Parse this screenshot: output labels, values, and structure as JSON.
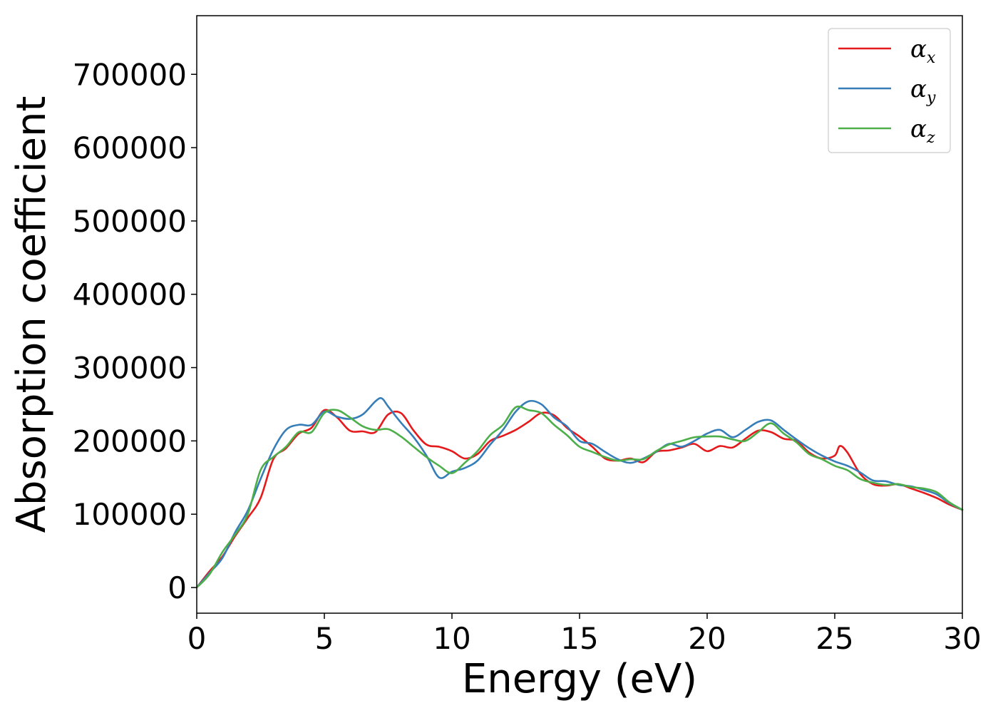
{
  "chart_data": {
    "type": "line",
    "title": "",
    "xlabel": "Energy (eV)",
    "ylabel": "Absorption coefficient",
    "xlim": [
      0,
      30
    ],
    "ylim": [
      -35000,
      780000
    ],
    "xticks": [
      0,
      5,
      10,
      15,
      20,
      25,
      30
    ],
    "yticks": [
      0,
      100000,
      200000,
      300000,
      400000,
      500000,
      600000,
      700000
    ],
    "xtick_labels": [
      "0",
      "5",
      "10",
      "15",
      "20",
      "25",
      "30"
    ],
    "ytick_labels": [
      "0",
      "100000",
      "200000",
      "300000",
      "400000",
      "500000",
      "600000",
      "700000"
    ],
    "grid": false,
    "legend_position": "top-right",
    "series": [
      {
        "name_symbol": "α",
        "name_subscript": "x",
        "color": "#e41a1c",
        "x": [
          0,
          0.5,
          1,
          1.5,
          2,
          2.5,
          3,
          3.5,
          4,
          4.5,
          5,
          5.5,
          6,
          6.5,
          7,
          7.5,
          8,
          8.5,
          9,
          9.5,
          10,
          10.5,
          11,
          11.5,
          12,
          12.5,
          13,
          13.5,
          14,
          14.5,
          15,
          15.5,
          16,
          16.5,
          17,
          17.5,
          18,
          18.5,
          19,
          19.5,
          20,
          20.5,
          21,
          21.5,
          22,
          22.5,
          23,
          23.5,
          24,
          24.5,
          25,
          25.2,
          25.5,
          26,
          26.5,
          27,
          27.5,
          28,
          28.5,
          29,
          29.5,
          30
        ],
        "y": [
          0,
          22000,
          42000,
          70000,
          95000,
          122000,
          175000,
          190000,
          210000,
          218000,
          242000,
          232000,
          214000,
          213000,
          212000,
          236000,
          238000,
          214000,
          195000,
          192000,
          186000,
          176000,
          182000,
          200000,
          207000,
          215000,
          226000,
          238000,
          235000,
          218000,
          206000,
          192000,
          176000,
          173000,
          176000,
          171000,
          185000,
          187000,
          191000,
          196000,
          186000,
          193000,
          191000,
          203000,
          214000,
          212000,
          203000,
          200000,
          184000,
          176000,
          180000,
          193000,
          184000,
          155000,
          141000,
          139000,
          141000,
          135000,
          129000,
          122000,
          113000,
          106000
        ]
      },
      {
        "name_symbol": "α",
        "name_subscript": "y",
        "color": "#377eb8",
        "x": [
          0,
          0.5,
          1,
          1.5,
          2,
          2.5,
          3,
          3.5,
          4,
          4.5,
          5,
          5.5,
          6,
          6.5,
          7,
          7.25,
          7.5,
          8,
          8.5,
          9,
          9.5,
          10,
          10.5,
          11,
          11.5,
          12,
          12.5,
          13,
          13.5,
          14,
          14.5,
          15,
          15.5,
          16,
          16.5,
          17,
          17.5,
          18,
          18.5,
          19,
          19.5,
          20,
          20.5,
          21,
          21.5,
          22,
          22.5,
          23,
          23.5,
          24,
          24.5,
          25,
          25.5,
          26,
          26.5,
          27,
          27.5,
          28,
          28.5,
          29,
          29.5,
          30
        ],
        "y": [
          0,
          20000,
          40000,
          75000,
          105000,
          148000,
          188000,
          215000,
          222000,
          222000,
          240000,
          233000,
          230000,
          236000,
          254000,
          258000,
          247000,
          225000,
          205000,
          180000,
          150000,
          158000,
          163000,
          173000,
          195000,
          215000,
          240000,
          254000,
          250000,
          232000,
          220000,
          200000,
          196000,
          185000,
          175000,
          170000,
          176000,
          185000,
          196000,
          192000,
          200000,
          210000,
          215000,
          205000,
          215000,
          226000,
          228000,
          215000,
          202000,
          190000,
          180000,
          172000,
          166000,
          157000,
          146000,
          145000,
          140000,
          138000,
          133000,
          127000,
          115000,
          106000
        ]
      },
      {
        "name_symbol": "α",
        "name_subscript": "z",
        "color": "#4daf4a",
        "x": [
          0,
          0.5,
          1,
          1.5,
          2,
          2.5,
          3,
          3.5,
          4,
          4.5,
          5,
          5.5,
          6,
          6.5,
          7,
          7.5,
          8,
          8.5,
          9,
          9.5,
          10,
          10.5,
          11,
          11.5,
          12,
          12.5,
          13,
          13.5,
          14,
          14.5,
          15,
          15.5,
          16,
          16.5,
          17,
          17.5,
          18,
          18.5,
          19,
          19.5,
          20,
          20.5,
          21,
          21.5,
          22,
          22.5,
          23,
          23.5,
          24,
          24.5,
          25,
          25.5,
          26,
          26.5,
          27,
          27.5,
          28,
          28.5,
          29,
          29.5,
          30
        ],
        "y": [
          0,
          18000,
          48000,
          72000,
          100000,
          160000,
          178000,
          192000,
          212000,
          212000,
          238000,
          242000,
          232000,
          220000,
          215000,
          216000,
          206000,
          192000,
          178000,
          166000,
          156000,
          170000,
          186000,
          208000,
          222000,
          246000,
          242000,
          238000,
          222000,
          208000,
          192000,
          185000,
          178000,
          173000,
          175000,
          175000,
          186000,
          195000,
          200000,
          205000,
          206000,
          206000,
          202000,
          200000,
          212000,
          224000,
          210000,
          198000,
          182000,
          175000,
          166000,
          160000,
          148000,
          143000,
          140000,
          141000,
          137000,
          135000,
          130000,
          116000,
          106000
        ]
      }
    ]
  }
}
